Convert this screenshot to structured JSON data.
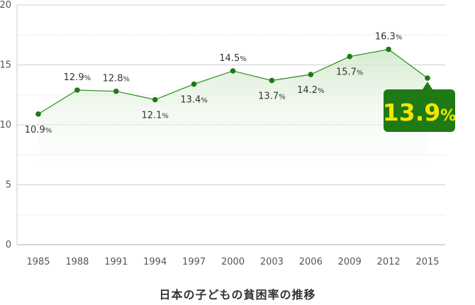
{
  "chart_data": {
    "type": "line",
    "title": "日本の子どもの貧困率の推移",
    "categories": [
      "1985",
      "1988",
      "1991",
      "1994",
      "1997",
      "2000",
      "2003",
      "2006",
      "2009",
      "2012",
      "2015"
    ],
    "series": [
      {
        "values": [
          10.9,
          12.9,
          12.8,
          12.1,
          13.4,
          14.5,
          13.7,
          14.2,
          15.7,
          16.3,
          13.9
        ],
        "labels": [
          "10.9",
          "12.9",
          "12.8",
          "12.1",
          "13.4",
          "14.5",
          "13.7",
          "14.2",
          "15.7",
          "16.3",
          "13.9"
        ],
        "unit": "%"
      }
    ],
    "y_ticks": [
      "0",
      "5",
      "10",
      "15",
      "20"
    ],
    "ylim": [
      0,
      20
    ],
    "grid": true,
    "highlight": {
      "index": 10,
      "value": "13.9",
      "unit": "%"
    },
    "colors": {
      "line": "#2a8a1c",
      "marker": "#1f7a16",
      "fill": "#cfe8c7",
      "highlight_bg": "#1f7a16",
      "highlight_text": "#f2e600",
      "grid": "#d0d0d0"
    }
  }
}
